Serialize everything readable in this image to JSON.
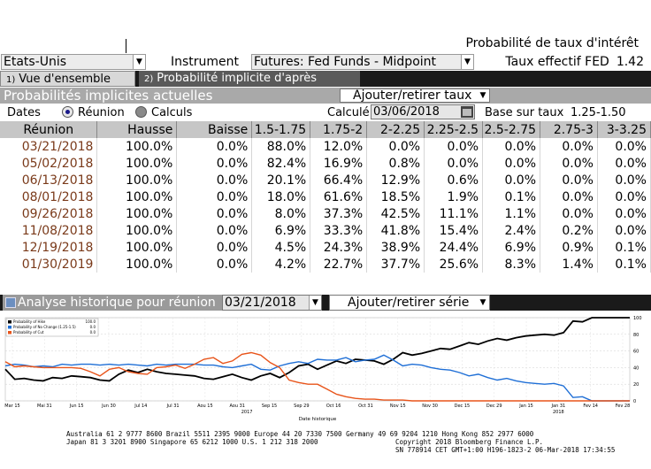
{
  "header": {
    "title": "Probabilité de taux d'intérêt",
    "country": "Etats-Unis",
    "instrument_label": "Instrument",
    "instrument": "Futures: Fed Funds - Midpoint",
    "effective_rate_label": "Taux effectif FED",
    "effective_rate_value": "1.42"
  },
  "tabs": [
    {
      "num": "1)",
      "label": "Vue d'ensemble"
    },
    {
      "num": "2)",
      "label": "Probabilité implicite d'après futures"
    }
  ],
  "section": {
    "title": "Probabilités implicites actuelles",
    "add_rate_label": "Ajouter/retirer taux"
  },
  "dates_row": {
    "label": "Dates",
    "option_meeting": "Réunion",
    "option_calc": "Calculs",
    "calc_label": "Calculé",
    "calc_date": "03/06/2018",
    "base_label": "Base sur taux",
    "base_value": "1.25-1.50"
  },
  "table": {
    "headers": [
      "Réunion",
      "Hausse",
      "Baisse",
      "1.5-1.75",
      "1.75-2",
      "2-2.25",
      "2.25-2.5",
      "2.5-2.75",
      "2.75-3",
      "3-3.25"
    ],
    "rows": [
      [
        "03/21/2018",
        "100.0%",
        "0.0%",
        "88.0%",
        "12.0%",
        "0.0%",
        "0.0%",
        "0.0%",
        "0.0%",
        "0.0%"
      ],
      [
        "05/02/2018",
        "100.0%",
        "0.0%",
        "82.4%",
        "16.9%",
        "0.8%",
        "0.0%",
        "0.0%",
        "0.0%",
        "0.0%"
      ],
      [
        "06/13/2018",
        "100.0%",
        "0.0%",
        "20.1%",
        "66.4%",
        "12.9%",
        "0.6%",
        "0.0%",
        "0.0%",
        "0.0%"
      ],
      [
        "08/01/2018",
        "100.0%",
        "0.0%",
        "18.0%",
        "61.6%",
        "18.5%",
        "1.9%",
        "0.1%",
        "0.0%",
        "0.0%"
      ],
      [
        "09/26/2018",
        "100.0%",
        "0.0%",
        "8.0%",
        "37.3%",
        "42.5%",
        "11.1%",
        "1.1%",
        "0.0%",
        "0.0%"
      ],
      [
        "11/08/2018",
        "100.0%",
        "0.0%",
        "6.9%",
        "33.3%",
        "41.8%",
        "15.4%",
        "2.4%",
        "0.2%",
        "0.0%"
      ],
      [
        "12/19/2018",
        "100.0%",
        "0.0%",
        "4.5%",
        "24.3%",
        "38.9%",
        "24.4%",
        "6.9%",
        "0.9%",
        "0.1%"
      ],
      [
        "01/30/2019",
        "100.0%",
        "0.0%",
        "4.2%",
        "22.7%",
        "37.7%",
        "25.6%",
        "8.3%",
        "1.4%",
        "0.1%"
      ]
    ]
  },
  "history": {
    "title": "Analyse historique pour réunion",
    "meeting_date": "03/21/2018",
    "add_series_label": "Ajouter/retirer série"
  },
  "chart_data": {
    "type": "line",
    "xlabel": "Date historique",
    "x_ticks": [
      "Mar 15",
      "Mai 31",
      "Jun 15",
      "Jun 30",
      "Jul 14",
      "Jul 31",
      "Aou 15",
      "Aou 31",
      "Sep 15",
      "Sep 29",
      "Oct 16",
      "Oct 31",
      "Nov 15",
      "Nov 30",
      "Dec 15",
      "Dec 29",
      "Jan 15",
      "Jan 31",
      "Fev 14",
      "Fev 28"
    ],
    "year_labels": [
      "2017",
      "2018"
    ],
    "ylim": [
      0,
      100
    ],
    "y_ticks": [
      0,
      20,
      40,
      60,
      80,
      100
    ],
    "legend": {
      "entries": [
        {
          "label": "Probability of Hike",
          "value": "100.0",
          "color": "#000000"
        },
        {
          "label": "Probability of No Change  (1.25-1.5)",
          "value": "0.0",
          "color": "#1f6fd6"
        },
        {
          "label": "Probability of Cut",
          "value": "0.0",
          "color": "#e8541a"
        }
      ]
    },
    "series": [
      {
        "name": "Probability of Hike",
        "color": "#000000",
        "values": [
          38,
          26,
          27,
          25,
          24,
          28,
          27,
          30,
          29,
          28,
          25,
          24,
          32,
          37,
          34,
          38,
          35,
          33,
          32,
          31,
          30,
          27,
          26,
          29,
          32,
          28,
          25,
          30,
          33,
          28,
          34,
          42,
          44,
          38,
          43,
          48,
          45,
          50,
          49,
          48,
          44,
          50,
          58,
          55,
          57,
          60,
          63,
          62,
          66,
          70,
          68,
          72,
          75,
          73,
          76,
          78,
          79,
          80,
          79,
          82,
          96,
          95,
          100,
          100,
          100,
          100,
          100
        ]
      },
      {
        "name": "Probability of No Change  (1.25-1.5)",
        "color": "#1f6fd6",
        "values": [
          42,
          44,
          43,
          41,
          42,
          41,
          44,
          43,
          44,
          44,
          43,
          44,
          43,
          44,
          43,
          42,
          44,
          43,
          44,
          44,
          44,
          43,
          43,
          41,
          40,
          42,
          44,
          38,
          37,
          42,
          45,
          47,
          45,
          50,
          49,
          49,
          52,
          47,
          49,
          50,
          55,
          49,
          42,
          44,
          43,
          40,
          38,
          37,
          34,
          30,
          32,
          28,
          25,
          27,
          24,
          22,
          21,
          20,
          21,
          18,
          4,
          5,
          0,
          0,
          0,
          0,
          0
        ]
      },
      {
        "name": "Probability of Cut",
        "color": "#e8541a",
        "values": [
          47,
          41,
          42,
          41,
          40,
          40,
          40,
          40,
          39,
          35,
          30,
          38,
          40,
          35,
          33,
          32,
          40,
          41,
          43,
          39,
          44,
          50,
          52,
          45,
          48,
          56,
          58,
          55,
          46,
          40,
          25,
          22,
          20,
          20,
          14,
          8,
          5,
          3,
          2,
          2,
          1,
          1,
          1,
          0,
          0,
          0,
          0,
          0,
          0,
          0,
          0,
          0,
          0,
          0,
          0,
          0,
          0,
          0,
          0,
          0,
          0,
          0,
          0,
          0,
          0,
          0,
          0
        ]
      }
    ]
  },
  "footer": {
    "line1": "Australia 61 2 9777 8600 Brazil 5511 2395 9000 Europe 44 20 7330 7500 Germany 49 69 9204 1210 Hong Kong 852 2977 6000",
    "line2": "Japan 81 3 3201 8900        Singapore 65 6212 1000        U.S. 1 212 318 2000",
    "line2_right": "Copyright 2018 Bloomberg Finance L.P.",
    "line3": "SN 778914 CET  GMT+1:00 H196-1823-2 06-Mar-2018 17:34:55"
  }
}
